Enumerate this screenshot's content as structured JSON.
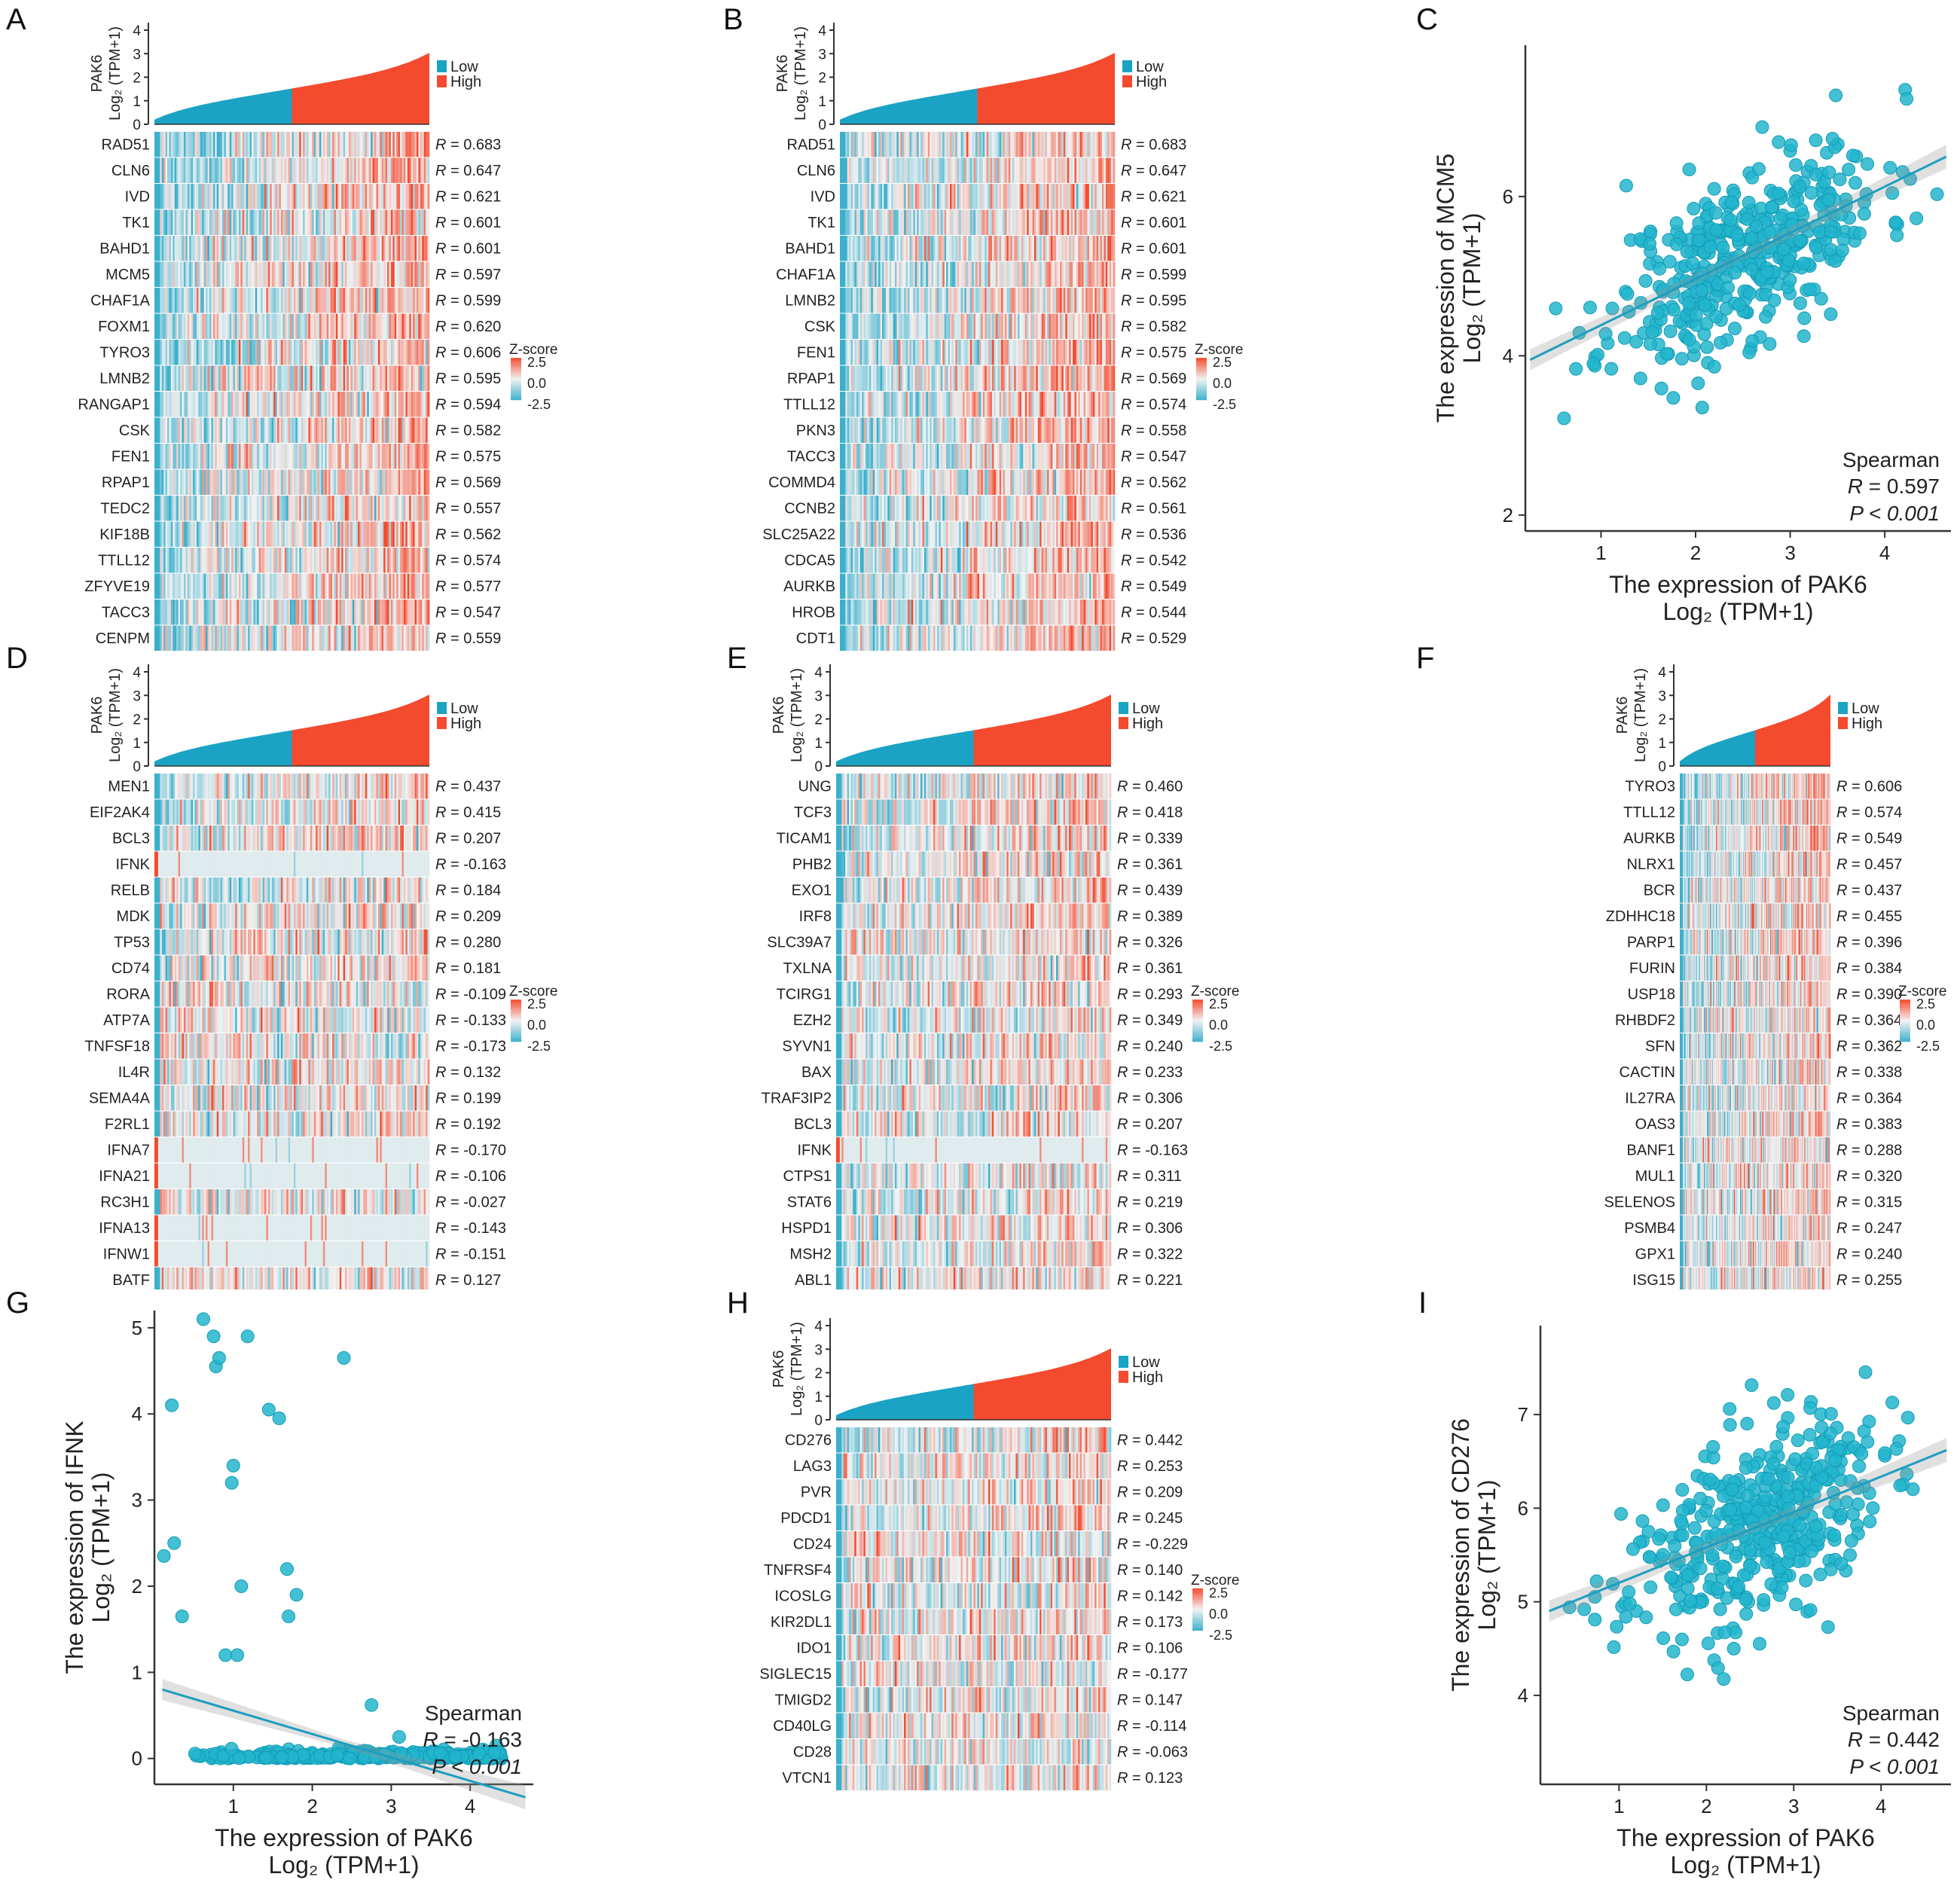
{
  "colors": {
    "low": "#1aa3c4",
    "high": "#f44a2e",
    "pos": "#e8735f",
    "neg": "#3bb0cc",
    "mid": "#f2f2f2",
    "scatter": "#22b5cc"
  },
  "heatmap_common": {
    "ylabel_gene": "PAK6",
    "ylabel_unit": "Log₂ (TPM+1)",
    "yticks": [
      "0",
      "1",
      "2",
      "3",
      "4"
    ],
    "legend_low": "Low",
    "legend_high": "High",
    "zscore_title": "Z-score",
    "zscore_ticks": [
      "2.5",
      "0.0",
      "-2.5"
    ],
    "r_prefix": "R"
  },
  "scatter_common": {
    "method": "Spearman",
    "r_prefix": "R",
    "p_text": "P < 0.001",
    "xlabel1": "The expression of PAK6",
    "xlabel2": "Log₂ (TPM+1)",
    "ylabel2": "Log₂ (TPM+1)"
  },
  "chart_data": [
    {
      "panel": "A",
      "type": "heatmap",
      "rows": [
        {
          "gene": "RAD51",
          "r": "0.683"
        },
        {
          "gene": "CLN6",
          "r": "0.647"
        },
        {
          "gene": "IVD",
          "r": "0.621"
        },
        {
          "gene": "TK1",
          "r": "0.601"
        },
        {
          "gene": "BAHD1",
          "r": "0.601"
        },
        {
          "gene": "MCM5",
          "r": "0.597"
        },
        {
          "gene": "CHAF1A",
          "r": "0.599"
        },
        {
          "gene": "FOXM1",
          "r": "0.620"
        },
        {
          "gene": "TYRO3",
          "r": "0.606"
        },
        {
          "gene": "LMNB2",
          "r": "0.595"
        },
        {
          "gene": "RANGAP1",
          "r": "0.594"
        },
        {
          "gene": "CSK",
          "r": "0.582"
        },
        {
          "gene": "FEN1",
          "r": "0.575"
        },
        {
          "gene": "RPAP1",
          "r": "0.569"
        },
        {
          "gene": "TEDC2",
          "r": "0.557"
        },
        {
          "gene": "KIF18B",
          "r": "0.562"
        },
        {
          "gene": "TTLL12",
          "r": "0.574"
        },
        {
          "gene": "ZFYVE19",
          "r": "0.577"
        },
        {
          "gene": "TACC3",
          "r": "0.547"
        },
        {
          "gene": "CENPM",
          "r": "0.559"
        }
      ]
    },
    {
      "panel": "B",
      "type": "heatmap",
      "rows": [
        {
          "gene": "RAD51",
          "r": "0.683"
        },
        {
          "gene": "CLN6",
          "r": "0.647"
        },
        {
          "gene": "IVD",
          "r": "0.621"
        },
        {
          "gene": "TK1",
          "r": "0.601"
        },
        {
          "gene": "BAHD1",
          "r": "0.601"
        },
        {
          "gene": "CHAF1A",
          "r": "0.599"
        },
        {
          "gene": "LMNB2",
          "r": "0.595"
        },
        {
          "gene": "CSK",
          "r": "0.582"
        },
        {
          "gene": "FEN1",
          "r": "0.575"
        },
        {
          "gene": "RPAP1",
          "r": "0.569"
        },
        {
          "gene": "TTLL12",
          "r": "0.574"
        },
        {
          "gene": "PKN3",
          "r": "0.558"
        },
        {
          "gene": "TACC3",
          "r": "0.547"
        },
        {
          "gene": "COMMD4",
          "r": "0.562"
        },
        {
          "gene": "CCNB2",
          "r": "0.561"
        },
        {
          "gene": "SLC25A22",
          "r": "0.536"
        },
        {
          "gene": "CDCA5",
          "r": "0.542"
        },
        {
          "gene": "AURKB",
          "r": "0.549"
        },
        {
          "gene": "HROB",
          "r": "0.544"
        },
        {
          "gene": "CDT1",
          "r": "0.529"
        }
      ]
    },
    {
      "panel": "C",
      "type": "scatter",
      "ylabel1": "The expression of MCM5",
      "r": "0.597",
      "xlim": [
        0.2,
        4.7
      ],
      "ylim": [
        1.8,
        7.9
      ],
      "xticks": [
        1,
        2,
        3,
        4
      ],
      "yticks": [
        2,
        4,
        6
      ],
      "fit": {
        "x0": 0.25,
        "y0": 3.95,
        "x1": 4.65,
        "y1": 6.5
      },
      "n": 420,
      "seed": 11,
      "model": "linear",
      "noise": 0.55
    },
    {
      "panel": "D",
      "type": "heatmap",
      "rows": [
        {
          "gene": "MEN1",
          "r": "0.437"
        },
        {
          "gene": "EIF2AK4",
          "r": "0.415"
        },
        {
          "gene": "BCL3",
          "r": "0.207"
        },
        {
          "gene": "IFNK",
          "r": "-0.163",
          "sparse": true
        },
        {
          "gene": "RELB",
          "r": "0.184"
        },
        {
          "gene": "MDK",
          "r": "0.209"
        },
        {
          "gene": "TP53",
          "r": "0.280"
        },
        {
          "gene": "CD74",
          "r": "0.181"
        },
        {
          "gene": "RORA",
          "r": "-0.109"
        },
        {
          "gene": "ATP7A",
          "r": "-0.133"
        },
        {
          "gene": "TNFSF18",
          "r": "-0.173"
        },
        {
          "gene": "IL4R",
          "r": "0.132"
        },
        {
          "gene": "SEMA4A",
          "r": "0.199"
        },
        {
          "gene": "F2RL1",
          "r": "0.192"
        },
        {
          "gene": "IFNA7",
          "r": "-0.170",
          "sparse": true
        },
        {
          "gene": "IFNA21",
          "r": "-0.106",
          "sparse": true
        },
        {
          "gene": "RC3H1",
          "r": "-0.027"
        },
        {
          "gene": "IFNA13",
          "r": "-0.143",
          "sparse": true
        },
        {
          "gene": "IFNW1",
          "r": "-0.151",
          "sparse": true
        },
        {
          "gene": "BATF",
          "r": "0.127"
        }
      ]
    },
    {
      "panel": "E",
      "type": "heatmap",
      "rows": [
        {
          "gene": "UNG",
          "r": "0.460"
        },
        {
          "gene": "TCF3",
          "r": "0.418"
        },
        {
          "gene": "TICAM1",
          "r": "0.339"
        },
        {
          "gene": "PHB2",
          "r": "0.361"
        },
        {
          "gene": "EXO1",
          "r": "0.439"
        },
        {
          "gene": "IRF8",
          "r": "0.389"
        },
        {
          "gene": "SLC39A7",
          "r": "0.326"
        },
        {
          "gene": "TXLNA",
          "r": "0.361"
        },
        {
          "gene": "TCIRG1",
          "r": "0.293"
        },
        {
          "gene": "EZH2",
          "r": "0.349"
        },
        {
          "gene": "SYVN1",
          "r": "0.240"
        },
        {
          "gene": "BAX",
          "r": "0.233"
        },
        {
          "gene": "TRAF3IP2",
          "r": "0.306"
        },
        {
          "gene": "BCL3",
          "r": "0.207"
        },
        {
          "gene": "IFNK",
          "r": "-0.163",
          "sparse": true
        },
        {
          "gene": "CTPS1",
          "r": "0.311"
        },
        {
          "gene": "STAT6",
          "r": "0.219"
        },
        {
          "gene": "HSPD1",
          "r": "0.306"
        },
        {
          "gene": "MSH2",
          "r": "0.322"
        },
        {
          "gene": "ABL1",
          "r": "0.221"
        }
      ]
    },
    {
      "panel": "F",
      "type": "heatmap",
      "rows": [
        {
          "gene": "TYRO3",
          "r": "0.606"
        },
        {
          "gene": "TTLL12",
          "r": "0.574"
        },
        {
          "gene": "AURKB",
          "r": "0.549"
        },
        {
          "gene": "NLRX1",
          "r": "0.457"
        },
        {
          "gene": "BCR",
          "r": "0.437"
        },
        {
          "gene": "ZDHHC18",
          "r": "0.455"
        },
        {
          "gene": "PARP1",
          "r": "0.396"
        },
        {
          "gene": "FURIN",
          "r": "0.384"
        },
        {
          "gene": "USP18",
          "r": "0.390"
        },
        {
          "gene": "RHBDF2",
          "r": "0.364"
        },
        {
          "gene": "SFN",
          "r": "0.362"
        },
        {
          "gene": "CACTIN",
          "r": "0.338"
        },
        {
          "gene": "IL27RA",
          "r": "0.364"
        },
        {
          "gene": "OAS3",
          "r": "0.383"
        },
        {
          "gene": "BANF1",
          "r": "0.288"
        },
        {
          "gene": "MUL1",
          "r": "0.320"
        },
        {
          "gene": "SELENOS",
          "r": "0.315"
        },
        {
          "gene": "PSMB4",
          "r": "0.247"
        },
        {
          "gene": "GPX1",
          "r": "0.240"
        },
        {
          "gene": "ISG15",
          "r": "0.255"
        }
      ]
    },
    {
      "panel": "G",
      "type": "scatter",
      "ylabel1": "The expression of IFNK",
      "r": "-0.163",
      "xlim": [
        0.0,
        4.8
      ],
      "ylim": [
        -0.3,
        5.2
      ],
      "xticks": [
        1,
        2,
        3,
        4
      ],
      "yticks": [
        0,
        1,
        2,
        3,
        4,
        5
      ],
      "fit": {
        "x0": 0.1,
        "y0": 0.8,
        "x1": 4.7,
        "y1": -0.45
      },
      "n": 320,
      "seed": 7,
      "model": "zero",
      "outliers": [
        [
          0.12,
          2.35
        ],
        [
          0.22,
          4.1
        ],
        [
          0.25,
          2.5
        ],
        [
          0.35,
          1.65
        ],
        [
          0.62,
          5.1
        ],
        [
          0.75,
          4.9
        ],
        [
          0.78,
          4.55
        ],
        [
          0.82,
          4.65
        ],
        [
          0.9,
          1.2
        ],
        [
          0.98,
          3.2
        ],
        [
          1.0,
          3.4
        ],
        [
          1.05,
          1.2
        ],
        [
          1.1,
          2.0
        ],
        [
          1.18,
          4.9
        ],
        [
          1.45,
          4.05
        ],
        [
          1.58,
          3.95
        ],
        [
          1.68,
          2.2
        ],
        [
          1.7,
          1.65
        ],
        [
          1.8,
          1.9
        ],
        [
          2.4,
          4.65
        ],
        [
          2.75,
          0.62
        ],
        [
          3.1,
          0.25
        ]
      ]
    },
    {
      "panel": "H",
      "type": "heatmap",
      "rows": [
        {
          "gene": "CD276",
          "r": "0.442"
        },
        {
          "gene": "LAG3",
          "r": "0.253"
        },
        {
          "gene": "PVR",
          "r": "0.209"
        },
        {
          "gene": "PDCD1",
          "r": "0.245"
        },
        {
          "gene": "CD24",
          "r": "-0.229"
        },
        {
          "gene": "TNFRSF4",
          "r": "0.140"
        },
        {
          "gene": "ICOSLG",
          "r": "0.142"
        },
        {
          "gene": "KIR2DL1",
          "r": "0.173"
        },
        {
          "gene": "IDO1",
          "r": "0.106"
        },
        {
          "gene": "SIGLEC15",
          "r": "-0.177"
        },
        {
          "gene": "TMIGD2",
          "r": "0.147"
        },
        {
          "gene": "CD40LG",
          "r": "-0.114"
        },
        {
          "gene": "CD28",
          "r": "-0.063"
        },
        {
          "gene": "VTCN1",
          "r": "0.123"
        }
      ]
    },
    {
      "panel": "I",
      "type": "scatter",
      "ylabel1": "The expression of CD276",
      "r": "0.442",
      "xlim": [
        0.1,
        4.8
      ],
      "ylim": [
        3.05,
        7.95
      ],
      "xticks": [
        1,
        2,
        3,
        4
      ],
      "yticks": [
        4,
        5,
        6,
        7
      ],
      "fit": {
        "x0": 0.2,
        "y0": 4.9,
        "x1": 4.75,
        "y1": 6.62
      },
      "n": 430,
      "seed": 23,
      "model": "linear",
      "noise": 0.5
    }
  ]
}
